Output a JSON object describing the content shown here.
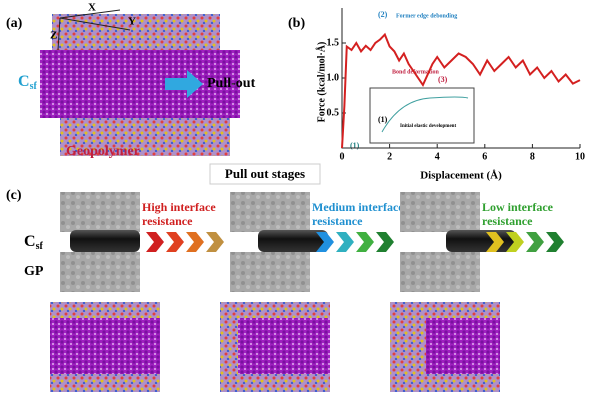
{
  "figure": {
    "panel_a": {
      "label": "(a)",
      "axis_x": "X",
      "axis_y": "Y",
      "axis_z": "Z",
      "csf_main": "C",
      "csf_sub": "sf",
      "pull_out": "Pull-out",
      "geopolymer": "Geopolymer"
    },
    "panel_b": {
      "label": "(b)",
      "peak_num": "(2)",
      "peak_text": "Former edge debonding",
      "bond_text": "Bond deformation",
      "bond_num": "(3)",
      "start_num": "(1)",
      "inset_num": "(1)",
      "inset_text": "Initial elastic development"
    },
    "panel_c": {
      "label": "(c)",
      "title": "Pull out stages",
      "stage_1": [
        "High interface",
        "resistance"
      ],
      "stage_2": [
        "Medium interface",
        "resistance"
      ],
      "stage_3": [
        "Low interface",
        "resistance"
      ],
      "csf_main": "C",
      "csf_sub": "sf",
      "gp": "GP"
    }
  },
  "chart_data": {
    "type": "line",
    "xlabel": "Displacement (Å)",
    "ylabel": "Force (kcal/mol·Å)",
    "color": "#d42020",
    "x": [
      0,
      0.1,
      0.2,
      0.4,
      0.6,
      0.8,
      1.0,
      1.2,
      1.4,
      1.6,
      1.8,
      2.0,
      2.2,
      2.4,
      2.6,
      2.8,
      3.0,
      3.2,
      3.4,
      3.6,
      3.8,
      4.0,
      4.3,
      4.6,
      4.9,
      5.2,
      5.5,
      5.8,
      6.1,
      6.4,
      6.7,
      7.0,
      7.3,
      7.6,
      7.9,
      8.2,
      8.5,
      8.8,
      9.1,
      9.4,
      9.7,
      10
    ],
    "values": [
      0,
      0.6,
      1.45,
      1.4,
      1.5,
      1.38,
      1.46,
      1.4,
      1.5,
      1.55,
      1.62,
      1.45,
      1.38,
      1.25,
      1.35,
      1.2,
      1.1,
      1.0,
      0.9,
      1.05,
      1.2,
      1.3,
      1.15,
      1.25,
      1.35,
      1.3,
      1.2,
      1.05,
      1.25,
      1.1,
      1.2,
      1.3,
      1.15,
      1.25,
      1.05,
      1.15,
      1.0,
      1.1,
      0.95,
      1.05,
      0.92,
      0.97
    ],
    "xlim": [
      0,
      10
    ],
    "ylim": [
      0,
      2
    ],
    "xticks": [
      0,
      2,
      4,
      6,
      8,
      10
    ],
    "yticks": [
      0.5,
      {
        "value": 1,
        "label": "1.0"
      },
      1.5
    ]
  }
}
